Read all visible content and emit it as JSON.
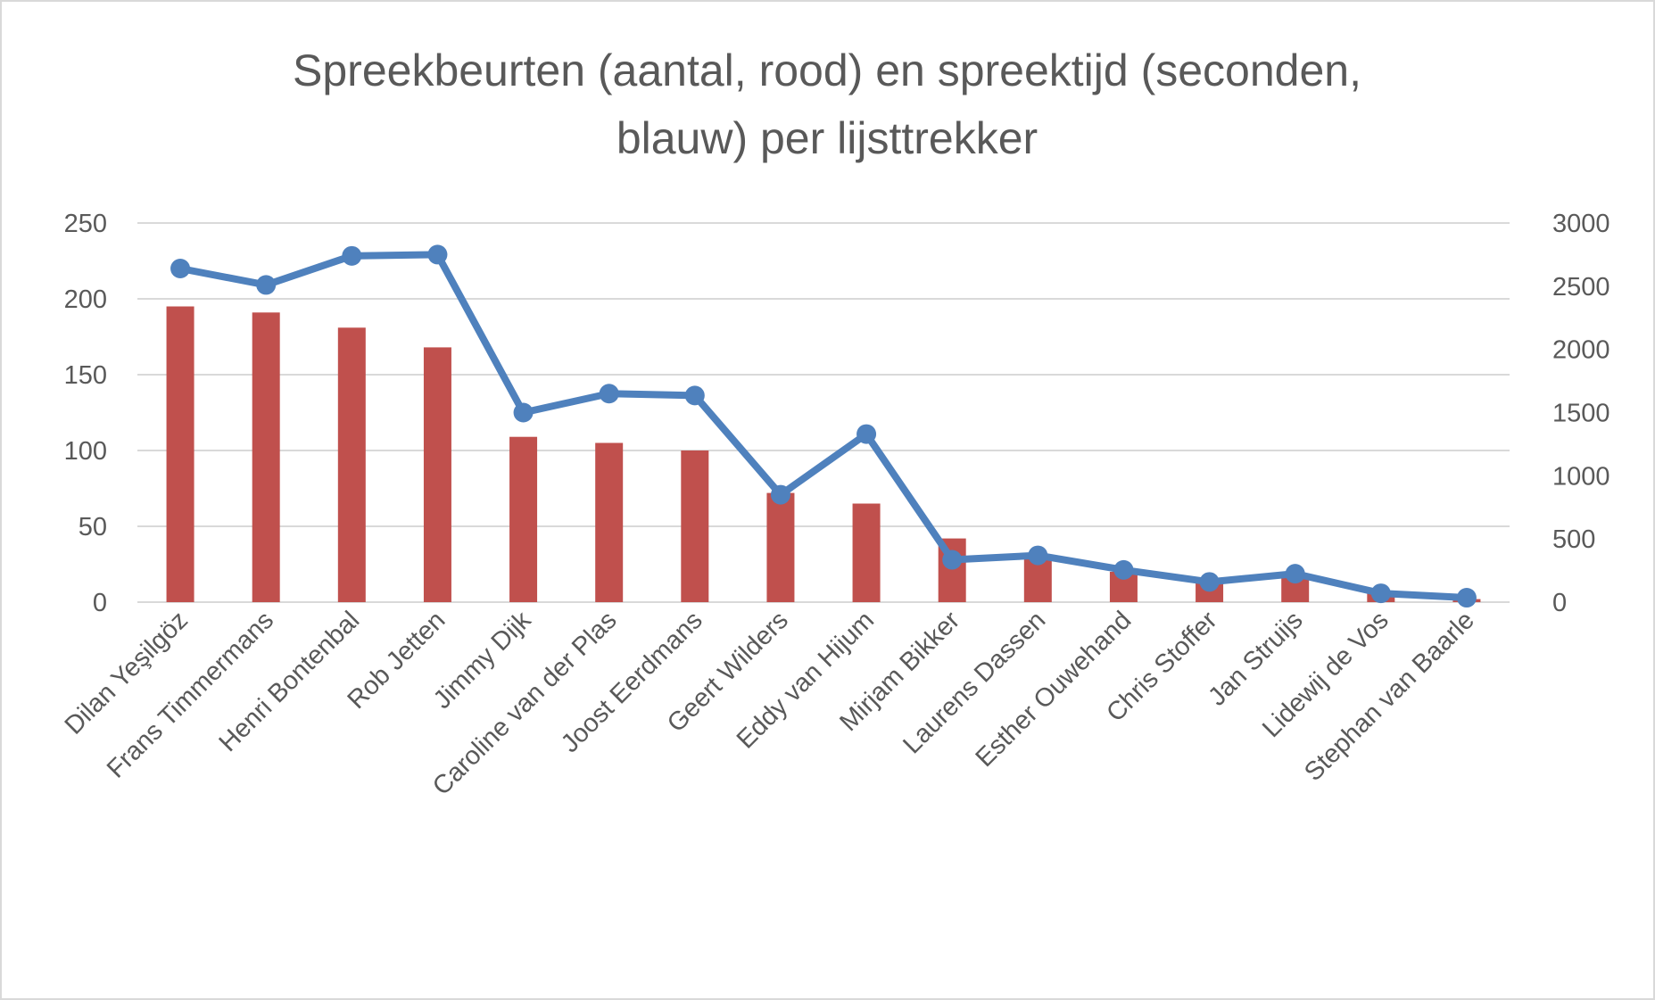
{
  "chart_data": {
    "type": "bar+line",
    "title_lines": [
      "Spreekbeurten (aantal, rood) en spreektijd (seconden,",
      "blauw) per lijsttrekker"
    ],
    "categories": [
      "Dilan Yeşilgöz",
      "Frans Timmermans",
      "Henri Bontenbal",
      "Rob Jetten",
      "Jimmy Dijk",
      "Caroline van der Plas",
      "Joost Eerdmans",
      "Geert Wilders",
      "Eddy van Hijum",
      "Mirjam Bikker",
      "Laurens Dassen",
      "Esther Ouwehand",
      "Chris Stoffer",
      "Jan Struijs",
      "Lidewij de Vos",
      "Stephan van Baarle"
    ],
    "series": [
      {
        "type": "bar",
        "axis": "left",
        "color": "#c0504d",
        "values": [
          195,
          191,
          181,
          168,
          109,
          105,
          100,
          72,
          65,
          42,
          30,
          20,
          14,
          16,
          6,
          2
        ]
      },
      {
        "type": "line",
        "axis": "right",
        "color": "#4f81bd",
        "values": [
          2640,
          2510,
          2740,
          2750,
          1500,
          1650,
          1635,
          850,
          1330,
          335,
          370,
          255,
          160,
          225,
          70,
          35
        ]
      }
    ],
    "left_axis": {
      "ylim": [
        0,
        250
      ],
      "ticks": [
        "0",
        "50",
        "100",
        "150",
        "200",
        "250"
      ]
    },
    "right_axis": {
      "ylim": [
        0,
        3000
      ],
      "ticks": [
        "0",
        "500",
        "1000",
        "1500",
        "2000",
        "2500",
        "3000"
      ]
    },
    "grid": true,
    "legend": "none"
  }
}
